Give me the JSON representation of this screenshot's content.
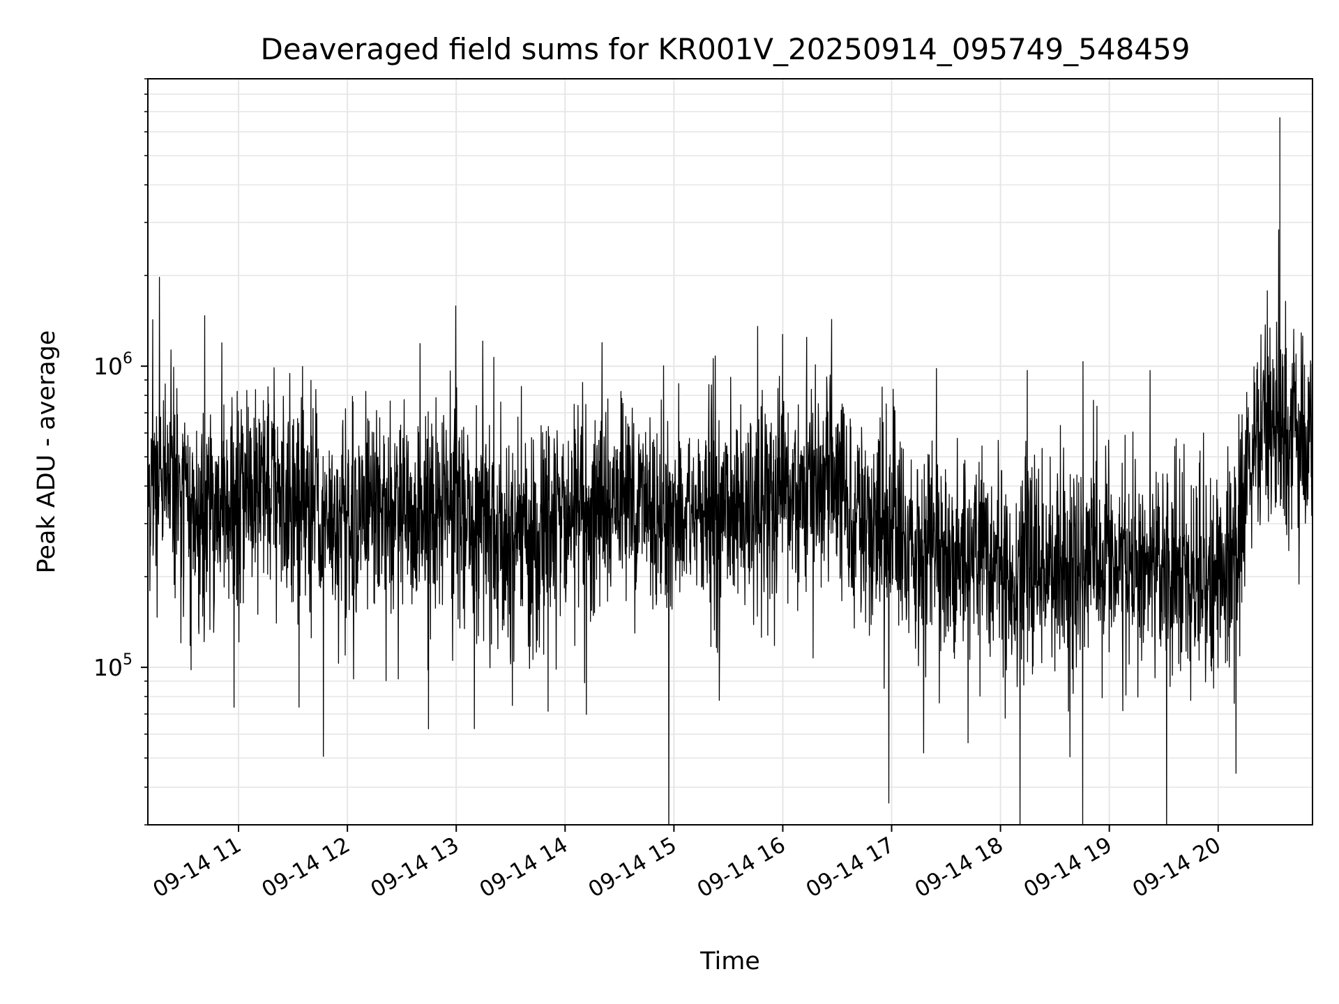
{
  "chart_data": {
    "type": "line",
    "title": "Deaveraged field sums for KR001V_20250914_095749_548459",
    "xlabel": "Time",
    "ylabel": "Peak ADU - average",
    "yscale": "log",
    "xlim": [
      "2025-09-14 10:10",
      "2025-09-14 20:52"
    ],
    "ylim": [
      30000,
      9000000
    ],
    "x_ticks": [
      "09-14 11",
      "09-14 12",
      "09-14 13",
      "09-14 14",
      "09-14 15",
      "09-14 16",
      "09-14 17",
      "09-14 18",
      "09-14 19",
      "09-14 20"
    ],
    "x_tick_times": [
      "2025-09-14 11:00",
      "2025-09-14 12:00",
      "2025-09-14 13:00",
      "2025-09-14 14:00",
      "2025-09-14 15:00",
      "2025-09-14 16:00",
      "2025-09-14 17:00",
      "2025-09-14 18:00",
      "2025-09-14 19:00",
      "2025-09-14 20:00"
    ],
    "y_ticks": [
      {
        "value": 100000,
        "base": "10",
        "exp": "5"
      },
      {
        "value": 1000000,
        "base": "10",
        "exp": "6"
      }
    ],
    "grid": true,
    "line_color": "#000000",
    "series": [
      {
        "x": [
          "10:10",
          "10:20",
          "10:30",
          "10:40",
          "10:50",
          "11:00",
          "11:10",
          "11:20",
          "11:30",
          "11:40",
          "11:50",
          "12:00",
          "12:10",
          "12:20",
          "12:30",
          "12:40",
          "12:50",
          "13:00",
          "13:10",
          "13:20",
          "13:30",
          "13:40",
          "13:50",
          "14:00",
          "14:10",
          "14:20",
          "14:30",
          "14:40",
          "14:50",
          "15:00",
          "15:10",
          "15:20",
          "15:30",
          "15:40",
          "15:50",
          "16:00",
          "16:10",
          "16:20",
          "16:30",
          "16:40",
          "16:50",
          "17:00",
          "17:10",
          "17:20",
          "17:30",
          "17:40",
          "17:50",
          "18:00",
          "18:10",
          "18:20",
          "18:30",
          "18:40",
          "18:50",
          "19:00",
          "19:10",
          "19:20",
          "19:30",
          "19:40",
          "19:50",
          "20:00",
          "20:10",
          "20:20",
          "20:30",
          "20:40",
          "20:50"
        ],
        "y": [
          400000,
          420000,
          360000,
          330000,
          340000,
          330000,
          360000,
          380000,
          370000,
          330000,
          310000,
          320000,
          330000,
          340000,
          320000,
          300000,
          310000,
          320000,
          300000,
          290000,
          280000,
          270000,
          290000,
          310000,
          330000,
          350000,
          370000,
          360000,
          340000,
          320000,
          320000,
          330000,
          340000,
          330000,
          340000,
          350000,
          380000,
          420000,
          380000,
          320000,
          300000,
          280000,
          260000,
          240000,
          230000,
          240000,
          260000,
          230000,
          210000,
          200000,
          210000,
          220000,
          220000,
          230000,
          210000,
          200000,
          210000,
          210000,
          200000,
          200000,
          250000,
          620000,
          630000,
          600000,
          580000
        ]
      }
    ]
  }
}
